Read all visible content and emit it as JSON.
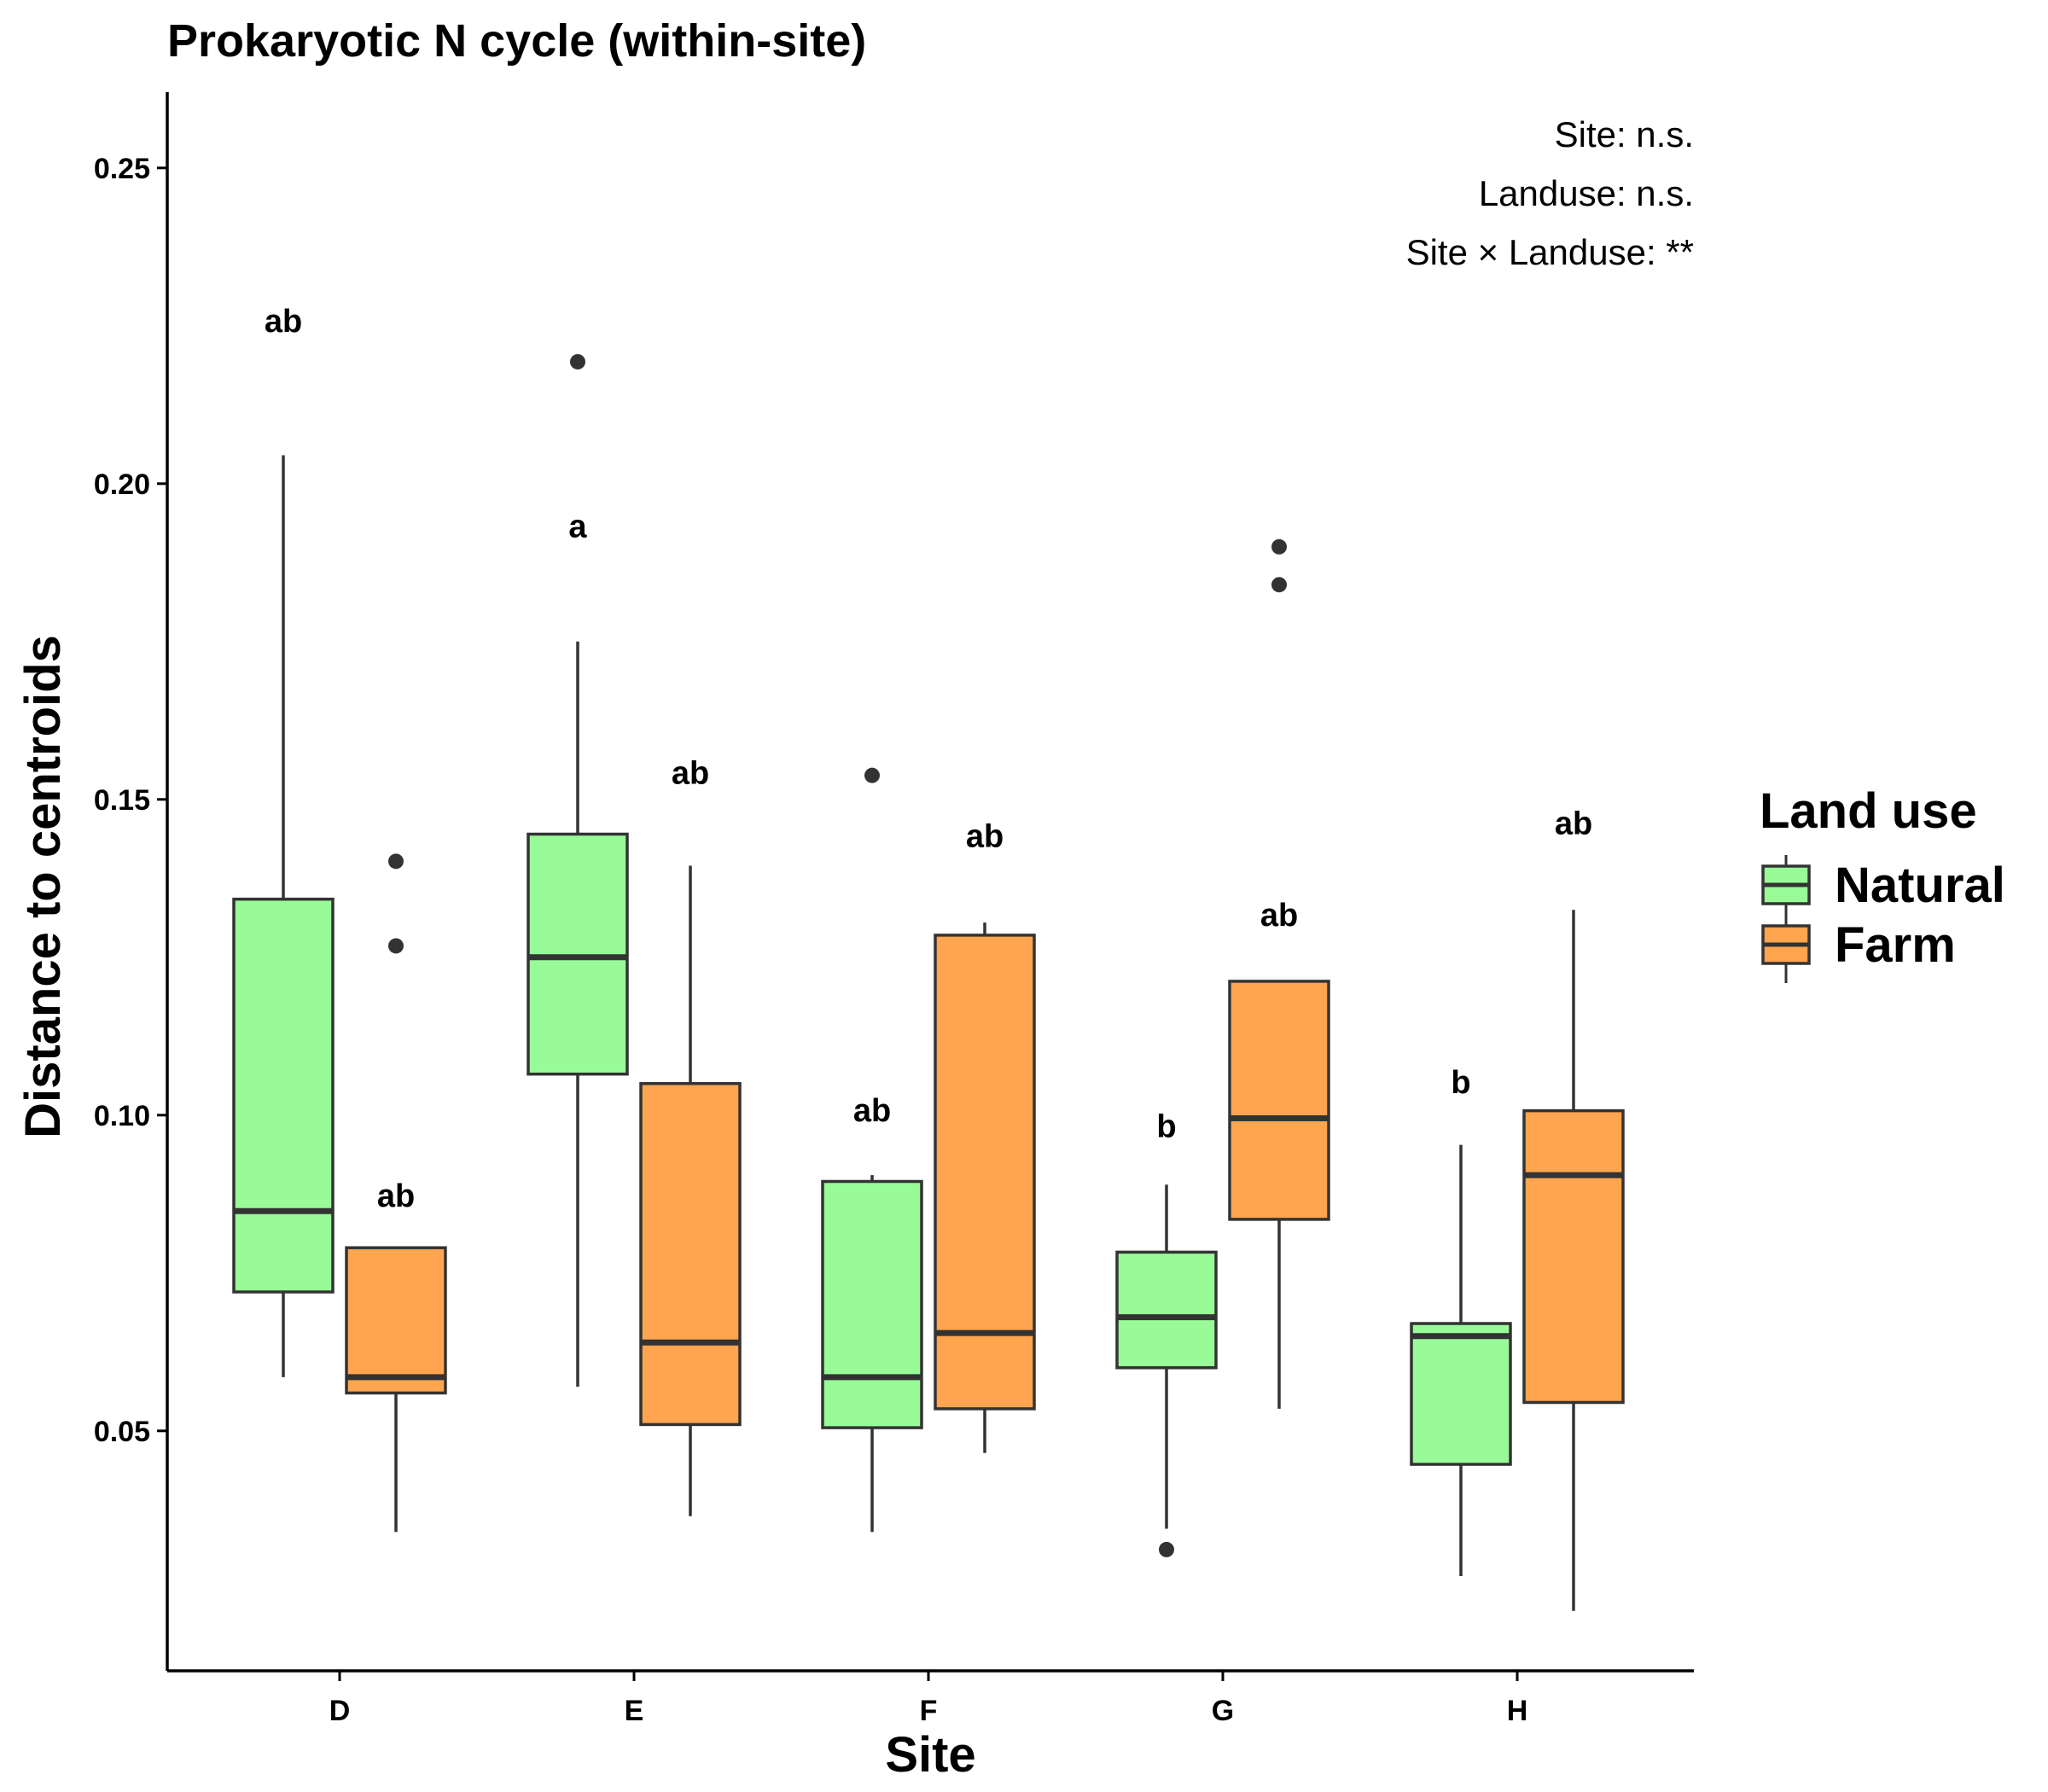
{
  "chart_data": {
    "type": "boxplot",
    "title": "Prokaryotic N cycle (within-site)",
    "xlabel": "Site",
    "ylabel": "Distance to centroids",
    "ylim": [
      0.012,
      0.262
    ],
    "yticks": [
      {
        "value": 0.05,
        "label": "0.05"
      },
      {
        "value": 0.1,
        "label": "0.10"
      },
      {
        "value": 0.15,
        "label": "0.15"
      },
      {
        "value": 0.2,
        "label": "0.20"
      },
      {
        "value": 0.25,
        "label": "0.25"
      }
    ],
    "categories": [
      "D",
      "E",
      "F",
      "G",
      "H"
    ],
    "legend": {
      "title": "Land use",
      "position": "right",
      "entries": [
        {
          "name": "Natural",
          "color": "#98fb98"
        },
        {
          "name": "Farm",
          "color": "#ffa54f"
        }
      ]
    },
    "stats": [
      "Site: n.s.",
      "Landuse: n.s.",
      "Site × Landuse: **"
    ],
    "series": [
      {
        "name": "Natural",
        "color": "#98fb98",
        "boxes": [
          {
            "category": "D",
            "min": 0.0585,
            "q1": 0.072,
            "median": 0.0848,
            "q3": 0.1342,
            "max": 0.2045,
            "outliers": [],
            "letter": "ab",
            "letter_y": 0.224
          },
          {
            "category": "E",
            "min": 0.057,
            "q1": 0.1065,
            "median": 0.125,
            "q3": 0.1445,
            "max": 0.175,
            "outliers": [
              0.2193
            ],
            "letter": "a",
            "letter_y": 0.1915
          },
          {
            "category": "F",
            "min": 0.034,
            "q1": 0.0505,
            "median": 0.0585,
            "q3": 0.0895,
            "max": 0.0905,
            "outliers": [
              0.1538
            ],
            "letter": "ab",
            "letter_y": 0.099
          },
          {
            "category": "G",
            "min": 0.0345,
            "q1": 0.06,
            "median": 0.068,
            "q3": 0.0783,
            "max": 0.089,
            "outliers": [
              0.0312
            ],
            "letter": "b",
            "letter_y": 0.0965
          },
          {
            "category": "H",
            "min": 0.027,
            "q1": 0.0447,
            "median": 0.065,
            "q3": 0.067,
            "max": 0.0953,
            "outliers": [],
            "letter": "b",
            "letter_y": 0.1035
          }
        ]
      },
      {
        "name": "Farm",
        "color": "#ffa54f",
        "boxes": [
          {
            "category": "D",
            "min": 0.034,
            "q1": 0.056,
            "median": 0.0585,
            "q3": 0.079,
            "max": 0.079,
            "outliers": [
              0.1268,
              0.1402
            ],
            "letter": "ab",
            "letter_y": 0.0855
          },
          {
            "category": "E",
            "min": 0.0365,
            "q1": 0.051,
            "median": 0.064,
            "q3": 0.105,
            "max": 0.1395,
            "outliers": [],
            "letter": "ab",
            "letter_y": 0.1525
          },
          {
            "category": "F",
            "min": 0.0465,
            "q1": 0.0535,
            "median": 0.0655,
            "q3": 0.1285,
            "max": 0.1305,
            "outliers": [],
            "letter": "ab",
            "letter_y": 0.1425
          },
          {
            "category": "G",
            "min": 0.0535,
            "q1": 0.0835,
            "median": 0.0995,
            "q3": 0.1212,
            "max": 0.1212,
            "outliers": [
              0.184,
              0.19
            ],
            "letter": "ab",
            "letter_y": 0.13
          },
          {
            "category": "H",
            "min": 0.0215,
            "q1": 0.0545,
            "median": 0.0905,
            "q3": 0.1007,
            "max": 0.1325,
            "outliers": [],
            "letter": "ab",
            "letter_y": 0.1445
          }
        ]
      }
    ]
  }
}
